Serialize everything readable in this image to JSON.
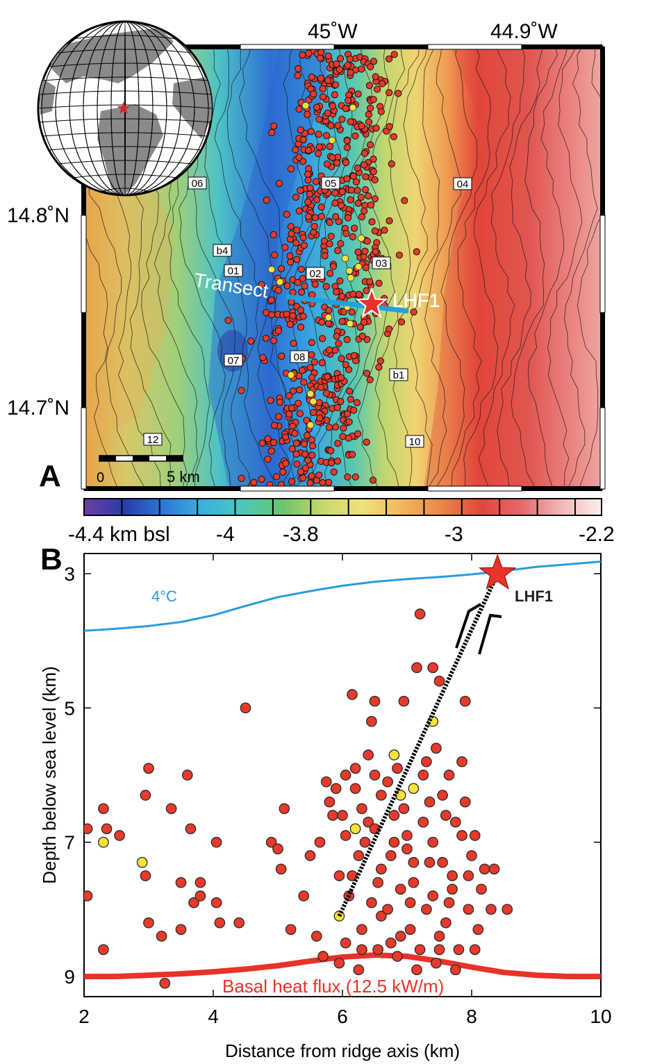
{
  "figure": {
    "panel_a_letter": "A",
    "panel_b_letter": "B"
  },
  "map_panel": {
    "lon_labels": [
      "45˚W",
      "44.9˚W"
    ],
    "lat_labels": [
      "14.8˚N",
      "14.7˚N"
    ],
    "transect_label": "Transect",
    "star_label": "LHF1",
    "scalebar_labels": [
      "0",
      "5 km"
    ],
    "contour_labels": [
      "06",
      "05",
      "04",
      "b4",
      "01",
      "02",
      "03",
      "07",
      "08",
      "b1",
      "10",
      "12"
    ],
    "colors": {
      "star": "#e8322a",
      "transect": "#1fa0e0",
      "event": "#e63a2b",
      "event_highlight": "#f5e23a"
    }
  },
  "colorbar": {
    "tick_labels": [
      "-4.4 km bsl",
      "-4",
      "-3.8",
      "-3",
      "-2.2"
    ],
    "stops": [
      "#6e3fa0",
      "#283ca8",
      "#2e78d6",
      "#3ab2e0",
      "#4cc8b8",
      "#6cc46c",
      "#c8d86a",
      "#efe27a",
      "#f2b65a",
      "#e8864a",
      "#e0463c",
      "#e56a6a",
      "#f2b8b8",
      "#fbeeee"
    ]
  },
  "chart_data": {
    "type": "scatter",
    "xlabel": "Distance from ridge axis (km)",
    "ylabel": "Depth below sea level (km)",
    "xlim": [
      2,
      10
    ],
    "ylim": [
      9.3,
      2.7
    ],
    "y_inverted": true,
    "x_ticks": [
      2,
      4,
      6,
      8,
      10
    ],
    "y_ticks": [
      3,
      5,
      7,
      9
    ],
    "grid": true,
    "annotations": {
      "isotherm_label": "4°C",
      "basal_label": "Basal heat flux (12.5 kW/m)",
      "star_label": "LHF1"
    },
    "isotherm_4C": {
      "x": [
        2,
        2.5,
        3,
        3.5,
        4,
        4.5,
        5,
        5.5,
        6,
        6.5,
        7,
        7.5,
        8,
        8.5,
        9,
        9.5,
        10
      ],
      "y": [
        3.85,
        3.82,
        3.78,
        3.72,
        3.62,
        3.48,
        3.35,
        3.26,
        3.18,
        3.12,
        3.08,
        3.05,
        3.01,
        2.96,
        2.9,
        2.86,
        2.82
      ]
    },
    "basal_heat_flux": {
      "x": [
        2,
        2.5,
        3,
        3.5,
        4,
        4.5,
        5,
        5.5,
        6,
        6.5,
        7,
        7.5,
        8,
        8.5,
        9,
        9.5,
        10
      ],
      "y": [
        9.0,
        9.0,
        8.98,
        8.96,
        8.93,
        8.89,
        8.84,
        8.77,
        8.71,
        8.68,
        8.7,
        8.77,
        8.86,
        8.94,
        8.98,
        9.0,
        9.0
      ]
    },
    "fault_line": {
      "x": [
        5.95,
        8.4
      ],
      "y": [
        8.1,
        3.0
      ]
    },
    "star": {
      "x": 8.4,
      "y": 3.0
    },
    "highlight_events": [
      [
        2.3,
        7.0
      ],
      [
        2.9,
        7.3
      ],
      [
        5.95,
        8.1
      ],
      [
        6.2,
        6.8
      ],
      [
        6.8,
        5.7
      ],
      [
        6.9,
        6.3
      ],
      [
        7.1,
        6.2
      ],
      [
        7.4,
        5.2
      ]
    ],
    "events": [
      [
        2.05,
        6.8
      ],
      [
        2.05,
        7.8
      ],
      [
        2.3,
        6.5
      ],
      [
        2.35,
        6.8
      ],
      [
        2.55,
        6.9
      ],
      [
        2.3,
        8.6
      ],
      [
        2.95,
        6.3
      ],
      [
        3.0,
        5.9
      ],
      [
        2.95,
        7.5
      ],
      [
        3.0,
        8.2
      ],
      [
        3.2,
        8.4
      ],
      [
        3.25,
        9.1
      ],
      [
        3.35,
        6.5
      ],
      [
        3.5,
        7.6
      ],
      [
        3.5,
        8.3
      ],
      [
        3.6,
        6.0
      ],
      [
        3.65,
        6.8
      ],
      [
        3.7,
        7.9
      ],
      [
        3.8,
        7.6
      ],
      [
        3.8,
        7.8
      ],
      [
        4.05,
        7.0
      ],
      [
        4.05,
        7.9
      ],
      [
        4.1,
        8.2
      ],
      [
        4.4,
        8.2
      ],
      [
        4.5,
        5.0
      ],
      [
        4.9,
        7.0
      ],
      [
        5.0,
        7.1
      ],
      [
        5.05,
        7.4
      ],
      [
        5.1,
        6.5
      ],
      [
        5.2,
        8.3
      ],
      [
        5.4,
        7.8
      ],
      [
        5.5,
        7.2
      ],
      [
        5.6,
        8.4
      ],
      [
        5.65,
        7.0
      ],
      [
        5.7,
        8.7
      ],
      [
        5.75,
        6.1
      ],
      [
        5.8,
        6.4
      ],
      [
        5.85,
        6.6
      ],
      [
        5.95,
        7.5
      ],
      [
        5.95,
        8.8
      ],
      [
        6.05,
        6.0
      ],
      [
        6.05,
        6.9
      ],
      [
        6.15,
        4.8
      ],
      [
        6.2,
        5.9
      ],
      [
        6.25,
        7.2
      ],
      [
        6.3,
        8.3
      ],
      [
        6.4,
        6.7
      ],
      [
        6.45,
        5.2
      ],
      [
        6.5,
        4.9
      ],
      [
        6.55,
        7.6
      ],
      [
        6.6,
        8.1
      ],
      [
        6.7,
        6.1
      ],
      [
        6.75,
        8.5
      ],
      [
        6.85,
        5.9
      ],
      [
        6.95,
        4.9
      ],
      [
        7.0,
        7.1
      ],
      [
        7.05,
        8.3
      ],
      [
        7.15,
        4.4
      ],
      [
        7.2,
        3.6
      ],
      [
        7.25,
        6.7
      ],
      [
        7.3,
        8.0
      ],
      [
        7.35,
        6.4
      ],
      [
        7.4,
        4.4
      ],
      [
        7.45,
        5.6
      ],
      [
        7.5,
        4.6
      ],
      [
        7.55,
        7.3
      ],
      [
        7.6,
        8.2
      ],
      [
        7.65,
        6.0
      ],
      [
        7.75,
        6.7
      ],
      [
        7.85,
        5.8
      ],
      [
        7.9,
        4.9
      ],
      [
        7.95,
        7.5
      ],
      [
        8.05,
        6.9
      ],
      [
        8.1,
        8.3
      ],
      [
        8.2,
        7.4
      ],
      [
        8.3,
        8.0
      ],
      [
        8.35,
        7.4
      ],
      [
        8.55,
        8.0
      ],
      [
        6.0,
        6.6
      ],
      [
        6.1,
        7.8
      ],
      [
        6.3,
        6.5
      ],
      [
        6.35,
        7.0
      ],
      [
        6.5,
        6.0
      ],
      [
        6.6,
        7.4
      ],
      [
        6.7,
        8.0
      ],
      [
        6.8,
        6.6
      ],
      [
        6.9,
        7.7
      ],
      [
        7.0,
        6.9
      ],
      [
        7.1,
        7.6
      ],
      [
        7.2,
        8.6
      ],
      [
        7.3,
        5.8
      ],
      [
        7.4,
        7.0
      ],
      [
        7.5,
        8.4
      ],
      [
        7.6,
        6.6
      ],
      [
        7.7,
        7.7
      ],
      [
        7.8,
        8.6
      ],
      [
        7.9,
        6.4
      ],
      [
        8.0,
        7.2
      ],
      [
        8.05,
        8.6
      ],
      [
        6.25,
        8.9
      ],
      [
        6.55,
        8.6
      ],
      [
        6.85,
        8.7
      ],
      [
        7.15,
        8.9
      ],
      [
        7.45,
        8.8
      ],
      [
        7.75,
        8.9
      ],
      [
        6.4,
        5.7
      ],
      [
        6.6,
        6.3
      ],
      [
        6.95,
        6.5
      ],
      [
        7.25,
        6.0
      ],
      [
        7.55,
        6.3
      ],
      [
        7.85,
        6.9
      ],
      [
        6.15,
        7.5
      ],
      [
        6.45,
        7.9
      ],
      [
        6.75,
        7.2
      ],
      [
        7.05,
        7.9
      ],
      [
        7.35,
        7.3
      ],
      [
        7.65,
        7.9
      ],
      [
        7.95,
        8.0
      ],
      [
        6.3,
        8.6
      ],
      [
        6.9,
        8.4
      ],
      [
        7.5,
        8.6
      ],
      [
        5.9,
        6.2
      ],
      [
        6.05,
        8.5
      ],
      [
        6.2,
        6.2
      ],
      [
        6.5,
        6.8
      ],
      [
        6.8,
        7.0
      ],
      [
        7.1,
        7.3
      ],
      [
        7.4,
        7.8
      ],
      [
        7.7,
        7.5
      ],
      [
        8.15,
        7.7
      ]
    ]
  }
}
